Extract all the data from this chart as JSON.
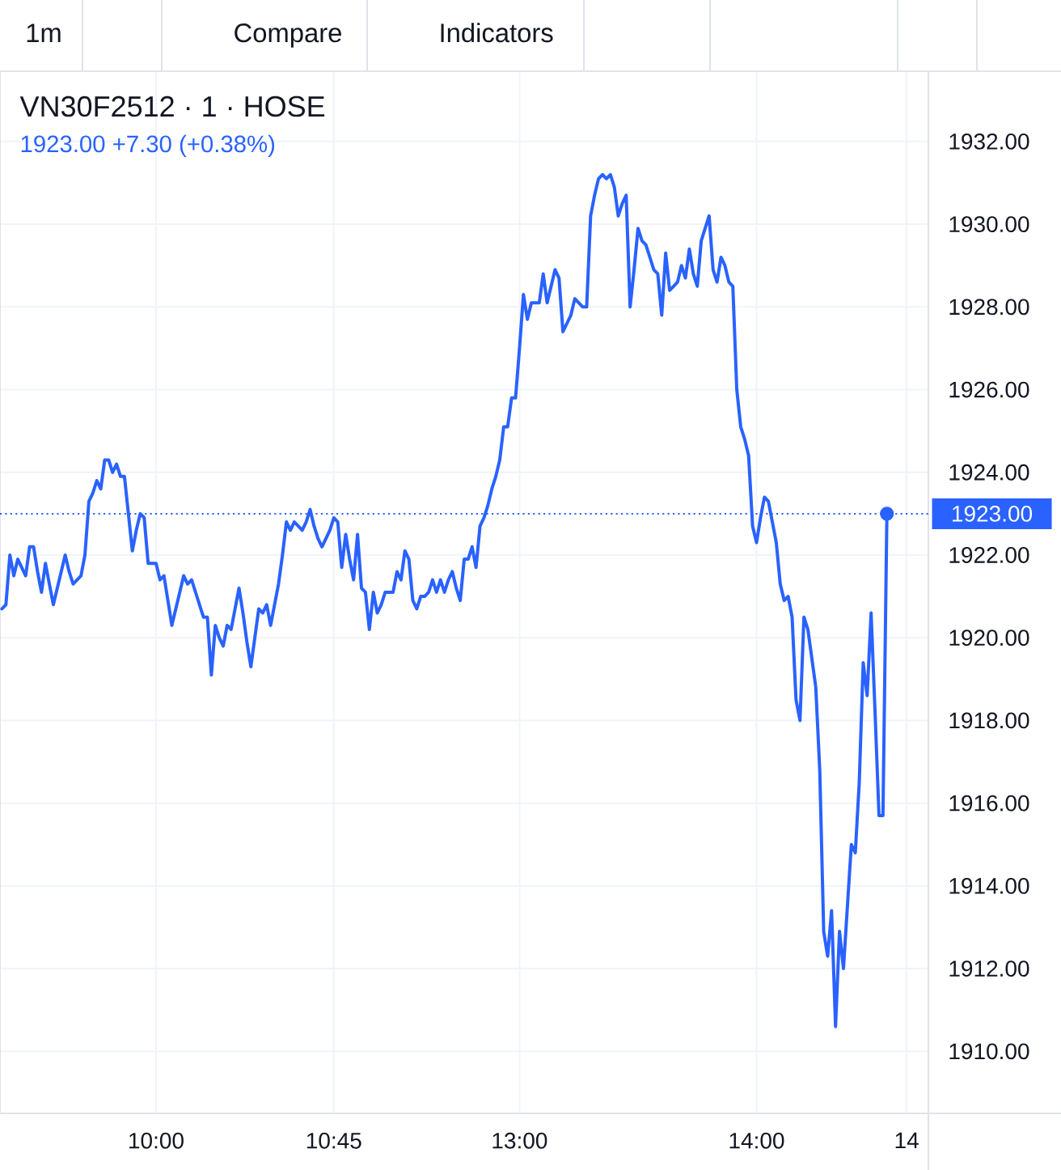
{
  "chart_data": {
    "type": "line",
    "title": "VN30F2512 · 1 · HOSE",
    "subtitle": "1923.00 +7.30 (+0.38%)",
    "annotations": [
      "1m",
      "Compare",
      "Indicators"
    ],
    "categories": [
      null,
      null,
      null,
      null,
      null,
      null,
      null,
      null,
      null,
      null,
      null,
      null,
      null,
      null,
      null,
      null,
      null,
      null,
      null,
      null,
      null,
      null,
      null,
      null,
      null,
      null,
      null,
      null,
      null,
      null,
      null,
      null,
      null,
      null,
      null,
      null,
      null,
      null,
      null,
      "10:00",
      null,
      null,
      null,
      null,
      null,
      null,
      null,
      null,
      null,
      null,
      null,
      null,
      null,
      null,
      null,
      null,
      null,
      null,
      null,
      null,
      null,
      null,
      null,
      null,
      null,
      null,
      null,
      null,
      null,
      null,
      null,
      null,
      null,
      null,
      null,
      null,
      null,
      null,
      null,
      null,
      null,
      null,
      null,
      null,
      "10:45",
      null,
      null,
      null,
      null,
      null,
      null,
      null,
      null,
      null,
      null,
      null,
      null,
      null,
      null,
      null,
      null,
      null,
      null,
      null,
      null,
      null,
      null,
      null,
      null,
      null,
      null,
      null,
      null,
      null,
      null,
      null,
      null,
      null,
      null,
      null,
      null,
      null,
      null,
      null,
      null,
      null,
      null,
      null,
      null,
      null,
      null,
      "13:00",
      null,
      null,
      null,
      null,
      null,
      null,
      null,
      null,
      null,
      null,
      null,
      null,
      null,
      null,
      null,
      null,
      null,
      null,
      null,
      null,
      null,
      null,
      null,
      null,
      null,
      null,
      null,
      null,
      null,
      null,
      null,
      null,
      null,
      null,
      null,
      null,
      null,
      null,
      null,
      null,
      null,
      null,
      null,
      null,
      null,
      null,
      null,
      null,
      null,
      null,
      null,
      null,
      null,
      null,
      null,
      null,
      null,
      null,
      null,
      "14:00",
      null,
      null,
      null,
      null,
      null,
      null,
      null,
      null,
      null,
      null,
      null,
      null,
      null,
      null,
      null,
      null,
      null,
      null,
      null,
      null,
      null,
      null,
      null,
      null,
      null,
      null,
      null,
      null,
      null,
      null,
      null,
      null,
      null,
      null,
      null,
      null,
      null,
      "14",
      null,
      null,
      null,
      null,
      null
    ],
    "ylim": [
      1908.5,
      1933.7
    ],
    "yticks": [
      {
        "value": 1910,
        "label": "1910.00"
      },
      {
        "value": 1912,
        "label": "1912.00"
      },
      {
        "value": 1914,
        "label": "1914.00"
      },
      {
        "value": 1916,
        "label": "1916.00"
      },
      {
        "value": 1918,
        "label": "1918.00"
      },
      {
        "value": 1920,
        "label": "1920.00"
      },
      {
        "value": 1922,
        "label": "1922.00"
      },
      {
        "value": 1924,
        "label": "1924.00"
      },
      {
        "value": 1926,
        "label": "1926.00"
      },
      {
        "value": 1928,
        "label": "1928.00"
      },
      {
        "value": 1930,
        "label": "1930.00"
      },
      {
        "value": 1932,
        "label": "1932.00"
      }
    ],
    "grid": true,
    "ref_lines": [
      {
        "axis": "y",
        "value": 1923,
        "label": "1923.00",
        "color": "#2962ff",
        "line_style": "dotted"
      }
    ],
    "series": [
      {
        "color": "#2962ff",
        "values": [
          1920.7,
          1920.8,
          1922.0,
          1921.5,
          1921.9,
          1921.7,
          1921.5,
          1922.2,
          1922.2,
          1921.6,
          1921.1,
          1921.8,
          1921.3,
          1920.8,
          1921.2,
          1921.6,
          1922.0,
          1921.6,
          1921.3,
          1921.4,
          1921.5,
          1922.0,
          1923.3,
          1923.5,
          1923.8,
          1923.6,
          1924.3,
          1924.3,
          1924.0,
          1924.2,
          1923.9,
          1923.9,
          1923.0,
          1922.1,
          1922.6,
          1923.0,
          1922.9,
          1921.8,
          1921.8,
          1921.8,
          1921.4,
          1921.5,
          1920.9,
          1920.3,
          1920.7,
          1921.1,
          1921.5,
          1921.3,
          1921.4,
          1921.1,
          1920.8,
          1920.5,
          1920.5,
          1919.1,
          1920.3,
          1920.0,
          1919.8,
          1920.3,
          1920.2,
          1920.7,
          1921.2,
          1920.6,
          1919.9,
          1919.3,
          1920.0,
          1920.7,
          1920.6,
          1920.8,
          1920.3,
          1920.8,
          1921.3,
          1922.0,
          1922.8,
          1922.6,
          1922.8,
          1922.7,
          1922.6,
          1922.8,
          1923.1,
          1922.7,
          1922.4,
          1922.2,
          1922.4,
          1922.6,
          1922.9,
          1922.8,
          1921.7,
          1922.5,
          1921.9,
          1921.4,
          1922.5,
          1921.2,
          1921.1,
          1920.2,
          1921.1,
          1920.6,
          1920.8,
          1921.1,
          1921.1,
          1921.1,
          1921.6,
          1921.4,
          1922.1,
          1921.9,
          1920.9,
          1920.7,
          1921.0,
          1921.0,
          1921.1,
          1921.4,
          1921.1,
          1921.4,
          1921.1,
          1921.4,
          1921.6,
          1921.2,
          1920.9,
          1921.9,
          1921.9,
          1922.2,
          1921.7,
          1922.7,
          1922.9,
          1923.2,
          1923.6,
          1923.9,
          1924.3,
          1925.1,
          1925.1,
          1925.8,
          1925.8,
          1927.0,
          1928.3,
          1927.7,
          1928.1,
          1928.1,
          1928.1,
          1928.8,
          1928.1,
          1928.5,
          1928.9,
          1928.7,
          1927.4,
          1927.6,
          1927.8,
          1928.2,
          1928.1,
          1928.0,
          1928.0,
          1930.2,
          1930.7,
          1931.1,
          1931.2,
          1931.1,
          1931.2,
          1930.9,
          1930.2,
          1930.5,
          1930.7,
          1928.0,
          1928.9,
          1929.9,
          1929.6,
          1929.5,
          1929.2,
          1928.9,
          1928.8,
          1927.8,
          1929.3,
          1928.4,
          1928.5,
          1928.6,
          1929.0,
          1928.7,
          1929.4,
          1928.8,
          1928.5,
          1929.6,
          1929.9,
          1930.2,
          1928.9,
          1928.6,
          1929.2,
          1929.0,
          1928.6,
          1928.5,
          1926.0,
          1925.1,
          1924.8,
          1924.4,
          1922.7,
          1922.3,
          1922.9,
          1923.4,
          1923.3,
          1922.8,
          1922.3,
          1921.3,
          1920.9,
          1921.0,
          1920.5,
          1918.5,
          1918.0,
          1920.5,
          1920.2,
          1919.5,
          1918.8,
          1916.8,
          1912.9,
          1912.3,
          1913.4,
          1910.6,
          1912.9,
          1912.0,
          1913.5,
          1915.0,
          1914.8,
          1916.5,
          1919.4,
          1918.6,
          1920.6,
          1918.2,
          1915.7,
          1915.7,
          1923.0,
          null,
          null,
          null,
          null,
          null,
          null,
          null,
          null,
          null,
          null
        ]
      },
      {
        "type": "scatter",
        "color": "#2962ff",
        "marker": "circle",
        "values": [
          null,
          null,
          null,
          null,
          null,
          null,
          null,
          null,
          null,
          null,
          null,
          null,
          null,
          null,
          null,
          null,
          null,
          null,
          null,
          null,
          null,
          null,
          null,
          null,
          null,
          null,
          null,
          null,
          null,
          null,
          null,
          null,
          null,
          null,
          null,
          null,
          null,
          null,
          null,
          null,
          null,
          null,
          null,
          null,
          null,
          null,
          null,
          null,
          null,
          null,
          null,
          null,
          null,
          null,
          null,
          null,
          null,
          null,
          null,
          null,
          null,
          null,
          null,
          null,
          null,
          null,
          null,
          null,
          null,
          null,
          null,
          null,
          null,
          null,
          null,
          null,
          null,
          null,
          null,
          null,
          null,
          null,
          null,
          null,
          null,
          null,
          null,
          null,
          null,
          null,
          null,
          null,
          null,
          null,
          null,
          null,
          null,
          null,
          null,
          null,
          null,
          null,
          null,
          null,
          null,
          null,
          null,
          null,
          null,
          null,
          null,
          null,
          null,
          null,
          null,
          null,
          null,
          null,
          null,
          null,
          null,
          null,
          null,
          null,
          null,
          null,
          null,
          null,
          null,
          null,
          null,
          null,
          null,
          null,
          null,
          null,
          null,
          null,
          null,
          null,
          null,
          null,
          null,
          null,
          null,
          null,
          null,
          null,
          null,
          null,
          null,
          null,
          null,
          null,
          null,
          null,
          null,
          null,
          null,
          null,
          null,
          null,
          null,
          null,
          null,
          null,
          null,
          null,
          null,
          null,
          null,
          null,
          null,
          null,
          null,
          null,
          null,
          null,
          null,
          null,
          null,
          null,
          null,
          null,
          null,
          null,
          null,
          null,
          null,
          null,
          null,
          null,
          null,
          null,
          null,
          null,
          null,
          null,
          null,
          null,
          null,
          null,
          null,
          null,
          null,
          null,
          null,
          null,
          null,
          null,
          null,
          null,
          null,
          null,
          null,
          null,
          null,
          null,
          null,
          null,
          null,
          null,
          null,
          null,
          1923,
          null,
          null,
          null,
          null,
          null,
          null,
          null,
          null,
          null,
          null
        ]
      }
    ]
  }
}
